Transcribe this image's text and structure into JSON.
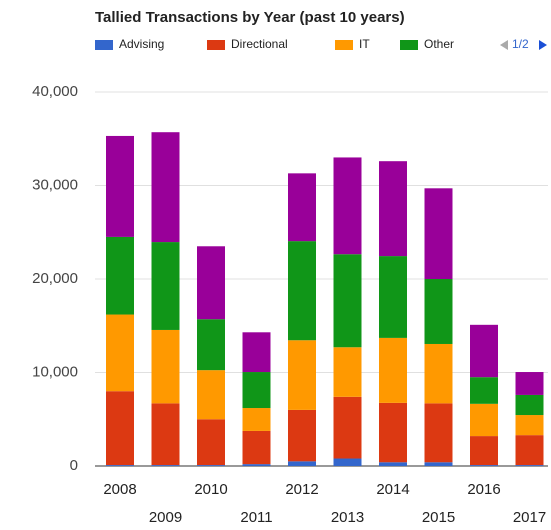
{
  "chart_data": {
    "type": "stacked_bar",
    "title": "Tallied Transactions by Year (past 10 years)",
    "categories": [
      "2008",
      "2009",
      "2010",
      "2011",
      "2012",
      "2013",
      "2014",
      "2015",
      "2016",
      "2017"
    ],
    "series": [
      {
        "name": "Advising",
        "color": "#3366cc",
        "values": [
          100,
          100,
          100,
          200,
          500,
          800,
          400,
          400,
          100,
          100
        ]
      },
      {
        "name": "Directional",
        "color": "#dc3912",
        "values": [
          7900,
          6600,
          4900,
          3550,
          5500,
          6600,
          6350,
          6300,
          3100,
          3200
        ]
      },
      {
        "name": "IT",
        "color": "#ff9900",
        "values": [
          8200,
          7850,
          5250,
          2450,
          7450,
          5300,
          6950,
          6350,
          3450,
          2150
        ]
      },
      {
        "name": "Other",
        "color": "#109618",
        "values": [
          8300,
          9400,
          5450,
          3850,
          10600,
          9950,
          8750,
          6950,
          2850,
          2150
        ]
      },
      {
        "color": "#990099",
        "values": [
          10800,
          11750,
          7800,
          4250,
          7250,
          10350,
          10150,
          9700,
          5600,
          2450
        ]
      }
    ],
    "legend_page": "1/2",
    "ylim": [
      0,
      40000
    ],
    "yticks": [
      0,
      {
        "value": 10000,
        "label": "10,000"
      },
      {
        "value": 20000,
        "label": "20,000"
      },
      {
        "value": 30000,
        "label": "30,000"
      },
      {
        "value": 40000,
        "label": "40,000"
      }
    ],
    "grid": true
  }
}
